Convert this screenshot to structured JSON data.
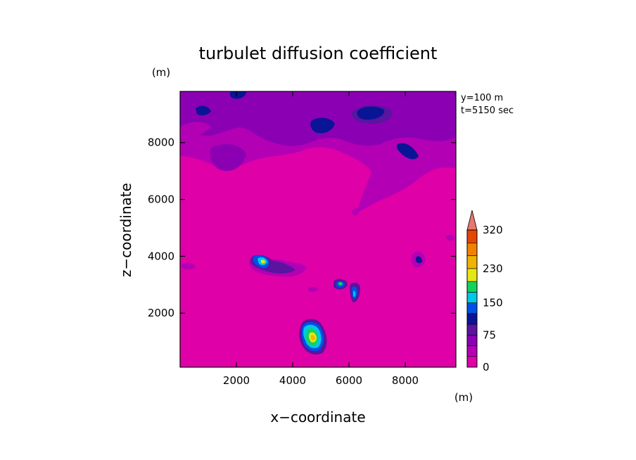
{
  "chart_data": {
    "type": "heatmap",
    "title": "turbulet diffusion coefficient",
    "xlabel": "x−coordinate",
    "ylabel": "z−coordinate",
    "x_unit": "(m)",
    "y_unit": "(m)",
    "annotations": [
      "y=100 m",
      "t=5150 sec"
    ],
    "xlim": [
      0,
      9800
    ],
    "ylim": [
      100,
      9800
    ],
    "x_ticks": [
      2000,
      4000,
      6000,
      8000
    ],
    "y_ticks": [
      2000,
      4000,
      6000,
      8000
    ],
    "colorbar": {
      "tick_labels": [
        "0",
        "75",
        "150",
        "230",
        "320"
      ],
      "tick_values": [
        0,
        75,
        150,
        230,
        320
      ],
      "levels": [
        0,
        25,
        50,
        75,
        100,
        125,
        150,
        175,
        200,
        230,
        260,
        290,
        320
      ],
      "colors": [
        "#e000a8",
        "#b400b4",
        "#8c00b4",
        "#5a14a0",
        "#0a1496",
        "#0050e6",
        "#00c8e6",
        "#14d25a",
        "#e6e614",
        "#f0b400",
        "#f08200",
        "#e64600",
        "#d21e1e"
      ],
      "overflow_color": "#e6786e",
      "extend": "max"
    },
    "features": [
      {
        "region": "upper layer",
        "x_range": [
          0,
          9800
        ],
        "z_range": [
          7000,
          9800
        ],
        "value_range": [
          25,
          100
        ]
      },
      {
        "region": "blob",
        "x": 3000,
        "z": 3850,
        "peak": 230
      },
      {
        "region": "blob",
        "x": 4700,
        "z": 1200,
        "peak": 260
      },
      {
        "region": "blob",
        "x": 5800,
        "z": 3080,
        "peak": 175
      },
      {
        "region": "blob",
        "x": 6300,
        "z": 2650,
        "peak": 150
      },
      {
        "region": "blob",
        "x": 8600,
        "z": 3900,
        "peak": 75
      }
    ]
  }
}
